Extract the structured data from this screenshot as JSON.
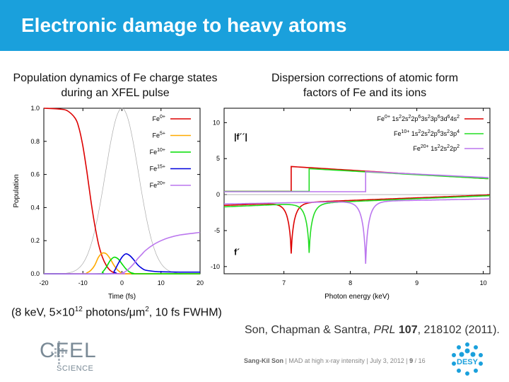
{
  "slide": {
    "title": "Electronic damage to heavy atoms",
    "params_prefix": "(8 keV, 5×10",
    "params_exp": "12",
    "params_mid": " photons/μm",
    "params_exp2": "2",
    "params_suffix": ", 10 fs FWHM)",
    "cite_authors": "Son, Chapman & Santra, ",
    "cite_journal": "PRL",
    "cite_volume": "107",
    "cite_rest": ", 218102 (2011).",
    "footer_author": "Sang-Kil Son",
    "footer_rest": "  |  MAD at high x-ray intensity  |  July 3, 2012  |  ",
    "footer_page": "9",
    "footer_total": "  / 16",
    "logo_main": "CFEL",
    "logo_sub": "SCIENCE",
    "desy_label": "DESY",
    "accent_color": "#1aa0dc"
  },
  "chart_data": [
    {
      "type": "line",
      "title": "Population dynamics of Fe charge states during an XFEL pulse",
      "xlabel": "Time (fs)",
      "ylabel": "Population",
      "xlim": [
        -20,
        20
      ],
      "ylim": [
        0,
        1
      ],
      "xticks": [
        "-20",
        "-10",
        "0",
        "10",
        "20"
      ],
      "yticks": [
        "0.0",
        "0.2",
        "0.4",
        "0.6",
        "0.8",
        "1.0"
      ],
      "legend_position": "top-right",
      "pulse_profile": {
        "color": "#aaaaaa",
        "center": 0,
        "fwhm": 10,
        "peak": 1.0
      },
      "series": [
        {
          "name": "Fe",
          "sup": "0+",
          "color": "#dd0000",
          "points": [
            [
              -20,
              1.0
            ],
            [
              -16,
              0.995
            ],
            [
              -14,
              0.985
            ],
            [
              -12,
              0.94
            ],
            [
              -11,
              0.88
            ],
            [
              -10,
              0.77
            ],
            [
              -9,
              0.62
            ],
            [
              -8,
              0.45
            ],
            [
              -7,
              0.3
            ],
            [
              -6,
              0.18
            ],
            [
              -5,
              0.1
            ],
            [
              -4,
              0.05
            ],
            [
              -3,
              0.02
            ],
            [
              -2,
              0.007
            ],
            [
              0,
              0.0
            ],
            [
              20,
              0.0
            ]
          ]
        },
        {
          "name": "Fe",
          "sup": "5+",
          "color": "#ffaa00",
          "points": [
            [
              -20,
              0.0
            ],
            [
              -10,
              0.0
            ],
            [
              -9,
              0.005
            ],
            [
              -8,
              0.02
            ],
            [
              -7,
              0.05
            ],
            [
              -6,
              0.1
            ],
            [
              -5,
              0.125
            ],
            [
              -4,
              0.12
            ],
            [
              -3,
              0.09
            ],
            [
              -2,
              0.05
            ],
            [
              -1,
              0.02
            ],
            [
              0,
              0.005
            ],
            [
              1,
              0.0
            ],
            [
              20,
              0.0
            ]
          ]
        },
        {
          "name": "Fe",
          "sup": "10+",
          "color": "#00dd00",
          "points": [
            [
              -20,
              0.0
            ],
            [
              -6,
              0.0
            ],
            [
              -5,
              0.01
            ],
            [
              -4,
              0.04
            ],
            [
              -3,
              0.08
            ],
            [
              -2,
              0.1
            ],
            [
              -1,
              0.09
            ],
            [
              0,
              0.06
            ],
            [
              1,
              0.03
            ],
            [
              2,
              0.01
            ],
            [
              3,
              0.002
            ],
            [
              4,
              0.0
            ],
            [
              20,
              0.0
            ]
          ]
        },
        {
          "name": "Fe",
          "sup": "15+",
          "color": "#0000dd",
          "points": [
            [
              -20,
              0.0
            ],
            [
              -3,
              0.0
            ],
            [
              -2,
              0.015
            ],
            [
              -1,
              0.06
            ],
            [
              0,
              0.1
            ],
            [
              1,
              0.12
            ],
            [
              2,
              0.11
            ],
            [
              3,
              0.085
            ],
            [
              4,
              0.055
            ],
            [
              5,
              0.035
            ],
            [
              6,
              0.022
            ],
            [
              8,
              0.015
            ],
            [
              10,
              0.012
            ],
            [
              15,
              0.01
            ],
            [
              20,
              0.01
            ]
          ]
        },
        {
          "name": "Fe",
          "sup": "20+",
          "color": "#bb77ee",
          "points": [
            [
              -20,
              0.0
            ],
            [
              -1,
              0.0
            ],
            [
              0,
              0.005
            ],
            [
              1,
              0.015
            ],
            [
              2,
              0.035
            ],
            [
              3,
              0.06
            ],
            [
              4,
              0.09
            ],
            [
              5,
              0.115
            ],
            [
              6,
              0.14
            ],
            [
              8,
              0.175
            ],
            [
              10,
              0.2
            ],
            [
              12,
              0.218
            ],
            [
              15,
              0.235
            ],
            [
              20,
              0.25
            ]
          ]
        }
      ]
    },
    {
      "type": "line",
      "title": "Dispersion corrections of atomic form factors of Fe and its ions",
      "xlabel": "Photon energy (keV)",
      "ylabel": "",
      "xlim": [
        6.1,
        10.1
      ],
      "ylim": [
        -11,
        12
      ],
      "xticks": [
        "7",
        "8",
        "9",
        "10"
      ],
      "yticks": [
        "10",
        "5",
        "0",
        "-5",
        "-10"
      ],
      "annotations": [
        {
          "text": "|f´´|",
          "x": 6.25,
          "y": 8
        },
        {
          "text": "f´",
          "x": 6.25,
          "y": -8
        }
      ],
      "legend_position": "top-right",
      "series": [
        {
          "name": "Fe",
          "sup": "0+",
          "config": "1s²2s²2p⁶3s²3p⁶3d⁶4s²",
          "config_html": [
            "1s",
            "2",
            "2s",
            "2",
            "2p",
            "6",
            "3s",
            "2",
            "3p",
            "6",
            "3d",
            "6",
            "4s",
            "2"
          ],
          "color": "#dd0000",
          "edge": 7.11,
          "fpp_below": 0.45,
          "fpp_edge": 3.9,
          "fpp_end": 2.2,
          "fp_start": -1.5,
          "fp_end": -0.05,
          "fp_min": -8.2
        },
        {
          "name": "Fe",
          "sup": "10+",
          "config": "1s²2s²2p⁶3s²3p⁴",
          "config_html": [
            "1s",
            "2",
            "2s",
            "2",
            "2p",
            "6",
            "3s",
            "2",
            "3p",
            "4"
          ],
          "color": "#22dd22",
          "edge": 7.38,
          "fpp_below": 0.45,
          "fpp_edge": 3.6,
          "fpp_end": 2.2,
          "fp_start": -1.7,
          "fp_end": -0.15,
          "fp_min": -8.1
        },
        {
          "name": "Fe",
          "sup": "20+",
          "config": "1s²2s²2p²",
          "config_html": [
            "1s",
            "2",
            "2s",
            "2",
            "2p",
            "2"
          ],
          "color": "#bb77ee",
          "edge": 8.23,
          "fpp_below": 0.4,
          "fpp_edge": 3.2,
          "fpp_end": 2.35,
          "fp_start": -1.3,
          "fp_end": -0.6,
          "fp_min": -9.6
        }
      ]
    }
  ]
}
